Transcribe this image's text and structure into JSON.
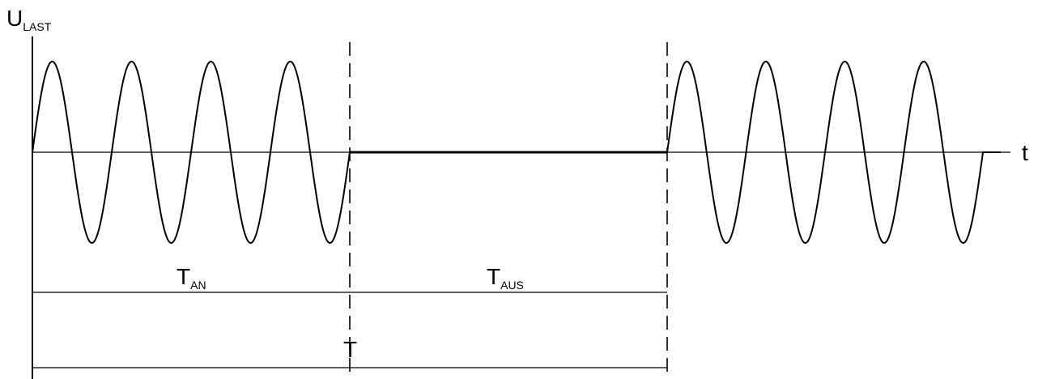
{
  "diagram": {
    "y_axis_label": {
      "main": "U",
      "sub": "LAST"
    },
    "x_axis_label": "t",
    "t_on_label": {
      "main": "T",
      "sub": "AN"
    },
    "t_off_label": {
      "main": "T",
      "sub": "AUS"
    },
    "period_label": "T"
  },
  "colors": {
    "line": "#000000",
    "background": "#ffffff"
  },
  "signal": {
    "on_phase_cycles": 4,
    "off_phase_amplitude": 0,
    "second_on_phase_cycles": 4,
    "waveform": "sine"
  }
}
